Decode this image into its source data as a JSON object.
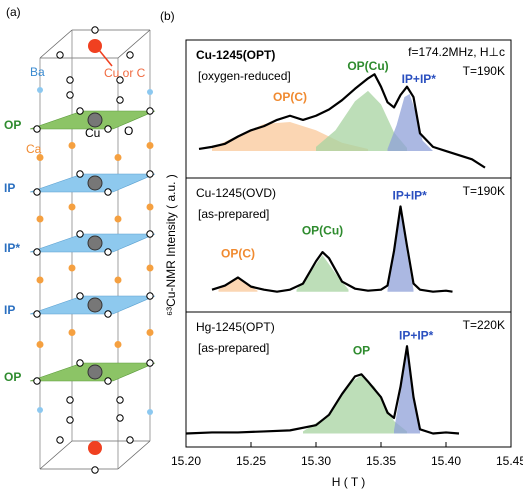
{
  "panel_a": {
    "label": "(a)",
    "dopant": "Cu or C",
    "ba": "Ba",
    "cu": "Cu",
    "o": "O",
    "ca": "Ca",
    "layers": [
      {
        "name": "OP",
        "color": "#2e8b2e"
      },
      {
        "name": "IP",
        "color": "#2a6fc0"
      },
      {
        "name": "IP*",
        "color": "#2a6fc0"
      },
      {
        "name": "IP",
        "color": "#2a6fc0"
      },
      {
        "name": "OP",
        "color": "#2e8b2e"
      }
    ]
  },
  "chart_data": {
    "type": "line",
    "label": "(b)",
    "xlabel": "H ( T )",
    "ylabel": "⁶³Cu-NMR Intensity ( a.u. )",
    "xlim": [
      15.2,
      15.45
    ],
    "xticks": [
      {
        "value": 15.2,
        "label": "15.20"
      },
      15.25,
      {
        "value": 15.3,
        "label": "15.30"
      },
      15.35,
      {
        "value": 15.4,
        "label": "15.40"
      },
      15.45
    ],
    "panels": [
      {
        "title": "Cu-1245(OPT)",
        "title_bold": true,
        "subtitle": "[oxygen-reduced]",
        "note": "f=174.2MHz, H⊥c",
        "temperature": "T=190K",
        "ylim": [
          -0.26,
          1.07
        ],
        "color": "#000000",
        "x": [
          15.21,
          15.22,
          15.23,
          15.24,
          15.25,
          15.26,
          15.27,
          15.28,
          15.29,
          15.3,
          15.31,
          15.32,
          15.33,
          15.34,
          15.345,
          15.35,
          15.355,
          15.36,
          15.365,
          15.37,
          15.375,
          15.38,
          15.39,
          15.4,
          15.42,
          15.43
        ],
        "values": [
          0.02,
          0.04,
          0.07,
          0.14,
          0.2,
          0.24,
          0.3,
          0.34,
          0.3,
          0.34,
          0.4,
          0.49,
          0.6,
          0.7,
          0.74,
          0.62,
          0.47,
          0.42,
          0.54,
          0.62,
          0.52,
          0.17,
          0.04,
          0.0,
          -0.08,
          -0.16
        ],
        "components": [
          {
            "name": "OP(C)",
            "color": "#f9c89a",
            "label_color": "#f08a30",
            "x": [
              15.22,
              15.24,
              15.26,
              15.28,
              15.3,
              15.32,
              15.34
            ],
            "values": [
              0.03,
              0.15,
              0.26,
              0.28,
              0.2,
              0.08,
              0.02
            ]
          },
          {
            "name": "OP(Cu)",
            "color": "#a7d3a0",
            "label_color": "#2e8b2e",
            "x": [
              15.3,
              15.315,
              15.33,
              15.34,
              15.35,
              15.36,
              15.37
            ],
            "values": [
              0.04,
              0.2,
              0.48,
              0.58,
              0.45,
              0.18,
              0.03
            ]
          },
          {
            "name": "IP+IP*",
            "color": "#8fa0d8",
            "label_color": "#2a4fbf",
            "x": [
              15.355,
              15.362,
              15.368,
              15.372,
              15.376,
              15.382,
              15.39
            ],
            "values": [
              0.02,
              0.25,
              0.52,
              0.55,
              0.4,
              0.1,
              0.0
            ]
          }
        ]
      },
      {
        "title": "Cu-1245(OVD)",
        "title_bold": false,
        "subtitle": "[as-prepared]",
        "temperature": "T=190K",
        "ylim": [
          -0.2,
          1.12
        ],
        "color": "#000000",
        "x": [
          15.22,
          15.23,
          15.24,
          15.25,
          15.26,
          15.27,
          15.28,
          15.29,
          15.3,
          15.305,
          15.31,
          15.32,
          15.33,
          15.34,
          15.35,
          15.355,
          15.36,
          15.365,
          15.37,
          15.375,
          15.38,
          15.39,
          15.4,
          15.405
        ],
        "values": [
          0.02,
          0.06,
          0.14,
          0.05,
          0.02,
          0.0,
          0.02,
          0.08,
          0.3,
          0.39,
          0.33,
          0.1,
          0.03,
          0.01,
          0.02,
          0.06,
          0.4,
          0.84,
          0.45,
          0.08,
          0.02,
          0.0,
          0.01,
          0.0
        ],
        "components": [
          {
            "name": "OP(C)",
            "color": "#f9c89a",
            "label_color": "#f08a30",
            "x": [
              15.225,
              15.235,
              15.24,
              15.245,
              15.255
            ],
            "values": [
              0.02,
              0.1,
              0.13,
              0.09,
              0.01
            ]
          },
          {
            "name": "OP(Cu)",
            "color": "#a7d3a0",
            "label_color": "#2e8b2e",
            "x": [
              15.285,
              15.295,
              15.305,
              15.315,
              15.325
            ],
            "values": [
              0.02,
              0.18,
              0.36,
              0.18,
              0.02
            ]
          },
          {
            "name": "IP+IP*",
            "color": "#8fa0d8",
            "label_color": "#2a4fbf",
            "x": [
              15.355,
              15.36,
              15.365,
              15.37,
              15.375
            ],
            "values": [
              0.02,
              0.38,
              0.8,
              0.38,
              0.02
            ]
          }
        ]
      },
      {
        "title": "Hg-1245(OPT)",
        "title_bold": false,
        "subtitle": "[as-prepared]",
        "temperature": "T=220K",
        "ylim": [
          -0.13,
          1.17
        ],
        "color": "#000000",
        "x": [
          15.2,
          15.22,
          15.24,
          15.26,
          15.28,
          15.3,
          15.31,
          15.32,
          15.33,
          15.335,
          15.34,
          15.35,
          15.355,
          15.36,
          15.365,
          15.37,
          15.375,
          15.38,
          15.39,
          15.4,
          15.41
        ],
        "values": [
          0.0,
          0.01,
          0.01,
          0.02,
          0.03,
          0.08,
          0.18,
          0.38,
          0.55,
          0.57,
          0.5,
          0.35,
          0.2,
          0.15,
          0.45,
          0.84,
          0.35,
          0.04,
          0.0,
          0.01,
          0.0
        ],
        "components": [
          {
            "name": "OP",
            "color": "#a7d3a0",
            "label_color": "#2e8b2e",
            "x": [
              15.29,
              15.31,
              15.325,
              15.335,
              15.345,
              15.36,
              15.37
            ],
            "values": [
              0.02,
              0.18,
              0.48,
              0.56,
              0.45,
              0.12,
              0.02
            ]
          },
          {
            "name": "IP+IP*",
            "color": "#8fa0d8",
            "label_color": "#2a4fbf",
            "x": [
              15.36,
              15.365,
              15.37,
              15.375,
              15.38
            ],
            "values": [
              0.03,
              0.4,
              0.8,
              0.3,
              0.02
            ]
          }
        ]
      }
    ]
  }
}
